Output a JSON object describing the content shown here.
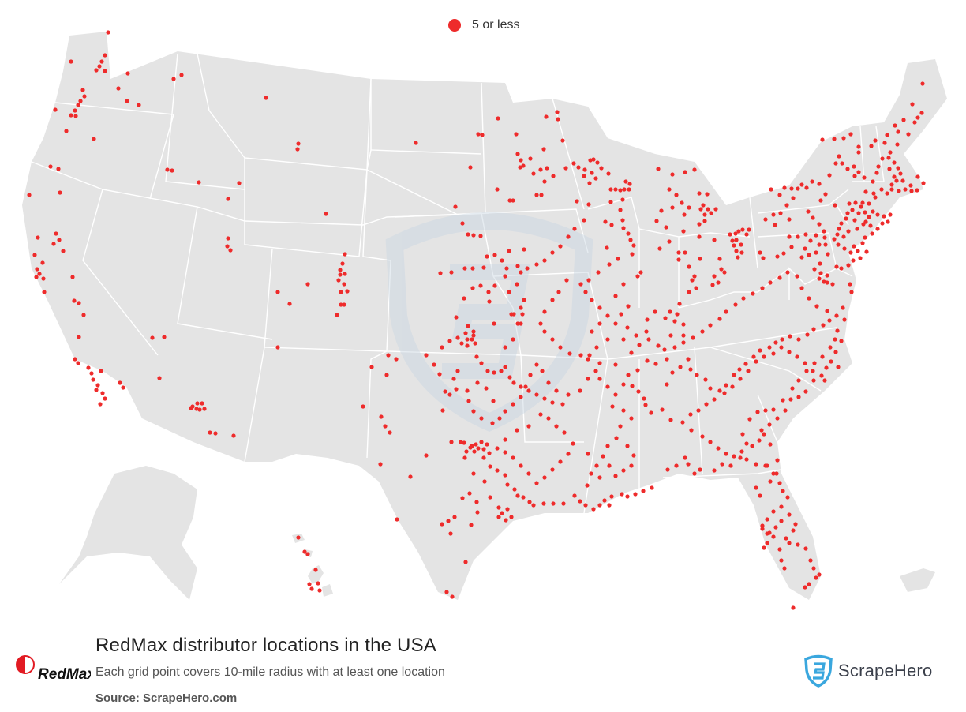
{
  "legend": {
    "label": "5 or less",
    "color": "#ee2b2b"
  },
  "title": "RedMax distributor locations in the USA",
  "subtitle": "Each grid point covers 10-mile radius with at least one location",
  "source": "Source: ScrapeHero.com",
  "brand_logo_text": "RedMax",
  "attribution": "ScrapeHero",
  "colors": {
    "land": "#e4e4e4",
    "borders": "#ffffff",
    "dot": "#ee2b2b",
    "watermark": "#c9d6e2",
    "scrapehero_blue": "#3aa7de"
  },
  "map": {
    "region": "United States (contiguous states, Alaska and Hawaii insets)",
    "marker_category": "5 or less"
  }
}
